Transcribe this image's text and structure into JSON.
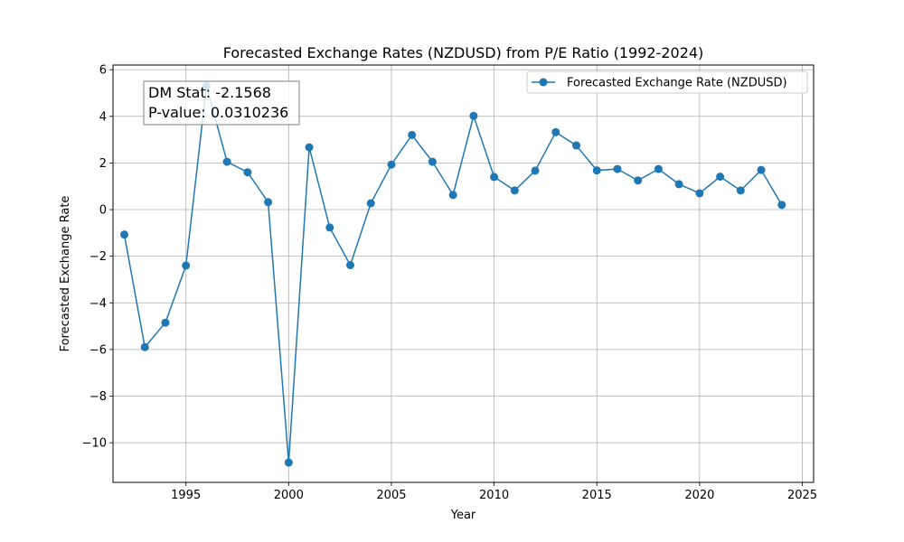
{
  "chart_data": {
    "type": "line",
    "title": "Forecasted Exchange Rates (NZDUSD) from P/E Ratio (1992-2024)",
    "xlabel": "Year",
    "ylabel": "Forecasted Exchange Rate",
    "xlim": [
      1991.45,
      2025.55
    ],
    "ylim": [
      -11.7,
      6.2
    ],
    "xticks": [
      1995,
      2000,
      2005,
      2010,
      2015,
      2020,
      2025
    ],
    "yticks": [
      6,
      4,
      2,
      0,
      -2,
      -4,
      -6,
      -8,
      -10
    ],
    "ytick_labels": [
      "6",
      "4",
      "2",
      "0",
      "−2",
      "−4",
      "−6",
      "−8",
      "−10"
    ],
    "grid": true,
    "legend_position": "upper-right",
    "series": [
      {
        "name": "Forecasted Exchange Rate (NZDUSD)",
        "color": "#1f77b4",
        "marker": "circle",
        "x": [
          1992,
          1993,
          1994,
          1995,
          1996,
          1997,
          1998,
          1999,
          2000,
          2001,
          2002,
          2003,
          2004,
          2005,
          2006,
          2007,
          2008,
          2009,
          2010,
          2011,
          2012,
          2013,
          2014,
          2015,
          2016,
          2017,
          2018,
          2019,
          2020,
          2021,
          2022,
          2023,
          2024
        ],
        "y": [
          -1.07,
          -5.9,
          -4.85,
          -2.4,
          5.3,
          2.05,
          1.6,
          0.32,
          -10.85,
          2.67,
          -0.77,
          -2.38,
          0.27,
          1.93,
          3.2,
          2.05,
          0.63,
          4.02,
          1.4,
          0.82,
          1.67,
          3.32,
          2.75,
          1.68,
          1.74,
          1.25,
          1.74,
          1.09,
          0.7,
          1.41,
          0.82,
          1.7,
          0.2
        ]
      }
    ],
    "annotation": {
      "line1": "DM Stat: -2.1568",
      "line2": "P-value: 0.0310236"
    }
  }
}
